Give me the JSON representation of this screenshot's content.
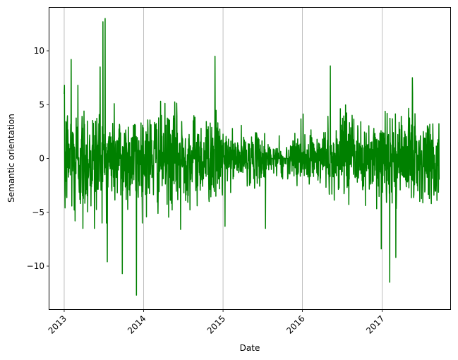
{
  "chart_data": {
    "type": "line",
    "xlabel": "Date",
    "ylabel": "Semantic orientation",
    "line_color": "#008000",
    "grid": {
      "x": true,
      "y": false,
      "color": "#b0b0b0"
    },
    "xlim": [
      "2012-10-25",
      "2017-11-10"
    ],
    "ylim": [
      -14,
      14
    ],
    "x_ticks": [
      {
        "date": "2013-01-01",
        "label": "2013"
      },
      {
        "date": "2014-01-01",
        "label": "2014"
      },
      {
        "date": "2015-01-01",
        "label": "2015"
      },
      {
        "date": "2016-01-01",
        "label": "2016"
      },
      {
        "date": "2017-01-01",
        "label": "2017"
      }
    ],
    "y_ticks": [
      {
        "value": 10,
        "label": "10"
      },
      {
        "value": 5,
        "label": "5"
      },
      {
        "value": 0,
        "label": "0"
      },
      {
        "value": -5,
        "label": "−5"
      },
      {
        "value": -10,
        "label": "−10"
      }
    ],
    "x_start": "2013-01-01",
    "x_end": "2017-09-20",
    "series": [
      {
        "highlights": [
          {
            "date": "2013-01-02",
            "value": 6.8
          },
          {
            "date": "2013-01-05",
            "value": -4.6
          },
          {
            "date": "2013-02-02",
            "value": 9.2
          },
          {
            "date": "2013-02-20",
            "value": -5.8
          },
          {
            "date": "2013-03-05",
            "value": 6.8
          },
          {
            "date": "2013-03-28",
            "value": -6.5
          },
          {
            "date": "2013-05-20",
            "value": -6.5
          },
          {
            "date": "2013-06-15",
            "value": 8.5
          },
          {
            "date": "2013-06-28",
            "value": 12.7
          },
          {
            "date": "2013-07-08",
            "value": 13.0
          },
          {
            "date": "2013-07-18",
            "value": -9.6
          },
          {
            "date": "2013-09-25",
            "value": -10.7
          },
          {
            "date": "2013-11-29",
            "value": -12.7
          },
          {
            "date": "2014-06-20",
            "value": -6.6
          },
          {
            "date": "2014-11-25",
            "value": 9.5
          },
          {
            "date": "2015-01-10",
            "value": -6.3
          },
          {
            "date": "2015-07-15",
            "value": -6.5
          },
          {
            "date": "2016-05-08",
            "value": 8.6
          },
          {
            "date": "2016-12-28",
            "value": -8.4
          },
          {
            "date": "2017-02-05",
            "value": -11.5
          },
          {
            "date": "2017-03-05",
            "value": -9.2
          },
          {
            "date": "2017-05-20",
            "value": 7.5
          },
          {
            "date": "2017-09-10",
            "value": -3.9
          }
        ]
      }
    ]
  }
}
